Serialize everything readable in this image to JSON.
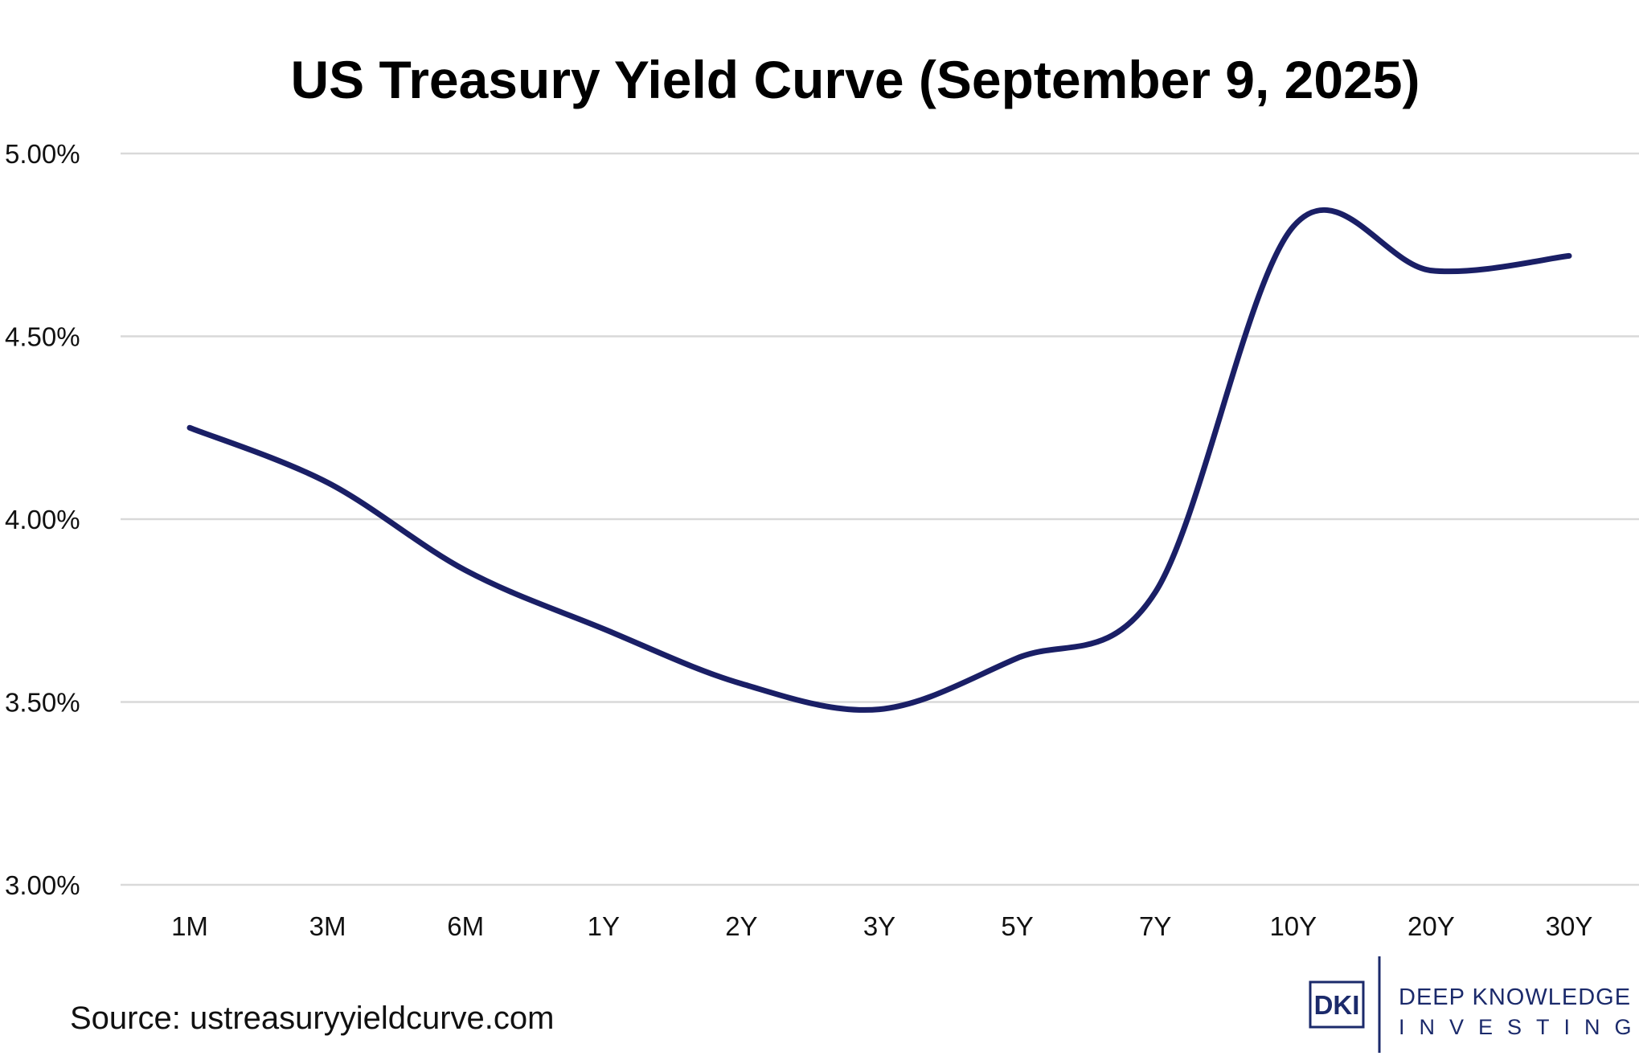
{
  "chart_data": {
    "type": "line",
    "title": "US Treasury Yield Curve (September 9, 2025)",
    "xlabel": "",
    "ylabel": "",
    "categories": [
      "1M",
      "3M",
      "6M",
      "1Y",
      "2Y",
      "3Y",
      "5Y",
      "7Y",
      "10Y",
      "20Y",
      "30Y"
    ],
    "series": [
      {
        "values": [
          4.25,
          4.1,
          3.86,
          3.7,
          3.55,
          3.48,
          3.62,
          3.8,
          4.8,
          4.68,
          4.72
        ]
      }
    ],
    "ylim": [
      3.0,
      5.0
    ],
    "yticks": [
      "3.00%",
      "3.50%",
      "4.00%",
      "4.50%",
      "5.00%"
    ],
    "yticks_values": [
      3.0,
      3.5,
      4.0,
      4.5,
      5.0
    ],
    "grid": "horizontal",
    "legend": "none",
    "smooth": true,
    "line_color": "#1a1f66",
    "gridline_color": "#d9d9d9"
  },
  "source_text": "Source: ustreasuryyieldcurve.com",
  "logo": {
    "box_text": "DKI",
    "line1": "DEEP KNOWLEDGE",
    "line2": "INVESTING",
    "color": "#1b2a6b"
  }
}
